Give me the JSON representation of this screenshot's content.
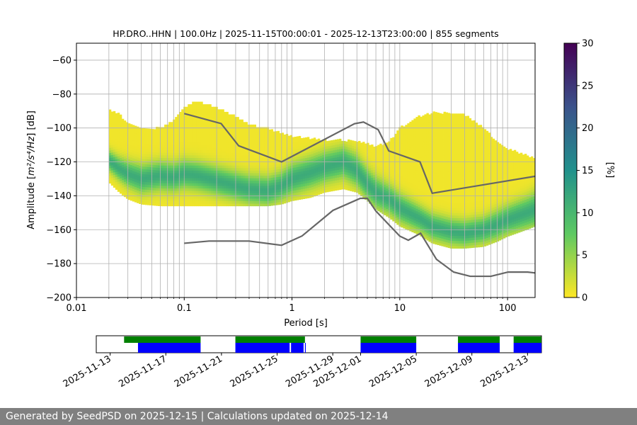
{
  "chart_data": [
    {
      "type": "heatmap",
      "title": "HP.DRO..HHN | 100.0Hz | 2025-11-15T00:00:01 - 2025-12-13T23:00:00 | 855 segments",
      "xlabel": "Period [s]",
      "ylabel_prefix": "Amplitude [",
      "ylabel_math": "m²/s⁴/Hz",
      "ylabel_suffix": "] [dB]",
      "xscale": "log",
      "xlim": [
        0.01,
        180
      ],
      "ylim": [
        -200,
        -50
      ],
      "grid": true,
      "x_tick_labels": [
        "0.01",
        "0.1",
        "1",
        "10",
        "100"
      ],
      "y_tick_labels": [
        "−60",
        "−80",
        "−100",
        "−120",
        "−140",
        "−160",
        "−180",
        "−200"
      ],
      "colorbar": {
        "label": "[%]",
        "range": [
          0,
          30
        ],
        "tick_labels": [
          "0",
          "5",
          "10",
          "15",
          "20",
          "25",
          "30"
        ],
        "colormap": [
          "#fde725",
          "#5ec962",
          "#21918c",
          "#3b528b",
          "#440154"
        ]
      },
      "psd_mode": {
        "period": [
          0.02,
          0.025,
          0.03,
          0.04,
          0.06,
          0.08,
          0.1,
          0.13,
          0.2,
          0.3,
          0.4,
          0.6,
          0.8,
          1.0,
          1.5,
          2.0,
          3.0,
          4.0,
          5.0,
          6.0,
          8.0,
          10,
          15,
          20,
          30,
          40,
          60,
          80,
          100,
          150,
          180
        ],
        "db": [
          -119,
          -124,
          -127,
          -130,
          -128,
          -129,
          -127,
          -128,
          -131,
          -134,
          -136,
          -137,
          -134,
          -130,
          -126,
          -123,
          -120,
          -125,
          -133,
          -138,
          -142,
          -147,
          -153,
          -158,
          -161,
          -162,
          -160,
          -157,
          -154,
          -150,
          -148
        ],
        "spread_db": [
          7,
          8,
          9,
          10,
          10,
          10,
          10,
          10,
          10,
          10,
          10,
          10,
          10,
          11,
          11,
          11,
          11,
          11,
          11,
          11,
          10,
          10,
          9,
          9,
          9,
          9,
          9,
          10,
          10,
          11,
          12
        ]
      },
      "psd_envelope": {
        "period": [
          0.02,
          0.025,
          0.03,
          0.04,
          0.06,
          0.08,
          0.1,
          0.13,
          0.2,
          0.3,
          0.4,
          0.6,
          0.8,
          1.0,
          1.5,
          2.0,
          3.0,
          4.0,
          5.0,
          6.0,
          8.0,
          10,
          15,
          20,
          30,
          40,
          60,
          80,
          100,
          150,
          180
        ],
        "upper_db": [
          -89,
          -92,
          -97,
          -100,
          -100,
          -95,
          -88,
          -84,
          -88,
          -93,
          -98,
          -100,
          -103,
          -105,
          -106,
          -107,
          -107,
          -108,
          -109,
          -111,
          -108,
          -100,
          -93,
          -91,
          -91,
          -92,
          -100,
          -108,
          -112,
          -116,
          -118
        ],
        "lower_db": [
          -132,
          -138,
          -142,
          -145,
          -146,
          -146,
          -146,
          -146,
          -146,
          -146,
          -146,
          -146,
          -145,
          -143,
          -141,
          -138,
          -136,
          -138,
          -143,
          -148,
          -153,
          -158,
          -163,
          -168,
          -171,
          -171,
          -170,
          -167,
          -164,
          -160,
          -158
        ]
      },
      "series": [
        {
          "name": "",
          "color": "#666666",
          "x": [
            0.1,
            0.17,
            0.4,
            0.8,
            1.24,
            2.4,
            4.3,
            5.0,
            6.0,
            10.0,
            12.0,
            15.6,
            21.9,
            31.6,
            45.0,
            70.0,
            101.0,
            154.0,
            180.0
          ],
          "y": [
            -168.0,
            -166.7,
            -166.7,
            -169.2,
            -163.7,
            -148.6,
            -141.5,
            -141.5,
            -149.0,
            -163.8,
            -166.2,
            -162.1,
            -177.5,
            -185.0,
            -187.5,
            -187.5,
            -185.0,
            -185.0,
            -185.5
          ]
        },
        {
          "name": "",
          "color": "#666666",
          "x": [
            0.1,
            0.22,
            0.32,
            0.8,
            3.8,
            4.6,
            6.3,
            7.9,
            15.4,
            20.0,
            180.0
          ],
          "y": [
            -91.5,
            -97.4,
            -110.5,
            -120.0,
            -97.5,
            -96.5,
            -101.0,
            -113.5,
            -120.0,
            -138.5,
            -128.5
          ]
        }
      ]
    },
    {
      "type": "timeline",
      "x_tick_labels": [
        "2025-11-13",
        "2025-11-17",
        "2025-11-21",
        "2025-11-25",
        "2025-11-29",
        "2025-12-01",
        "2025-12-05",
        "2025-12-09",
        "2025-12-13"
      ],
      "xlim": [
        "2025-11-12",
        "2025-12-14"
      ],
      "rows": [
        {
          "color": "#008000",
          "intervals": [
            [
              "2025-11-14",
              "2025-11-19.5"
            ],
            [
              "2025-11-22",
              "2025-11-27"
            ],
            [
              "2025-12-01",
              "2025-12-05"
            ],
            [
              "2025-12-08",
              "2025-12-11"
            ],
            [
              "2025-12-12",
              "2025-12-14"
            ]
          ]
        },
        {
          "color": "#0000ff",
          "intervals": [
            [
              "2025-11-15",
              "2025-11-19.5"
            ],
            [
              "2025-11-22",
              "2025-11-25.9"
            ],
            [
              "2025-11-26",
              "2025-11-26.9"
            ],
            [
              "2025-11-27",
              "2025-11-27"
            ],
            [
              "2025-12-01",
              "2025-12-05"
            ],
            [
              "2025-12-08",
              "2025-12-11"
            ],
            [
              "2025-12-12",
              "2025-12-14"
            ]
          ]
        }
      ]
    }
  ],
  "footer": "Generated by SeedPSD on 2025-12-15 | Calculations updated on 2025-12-14"
}
